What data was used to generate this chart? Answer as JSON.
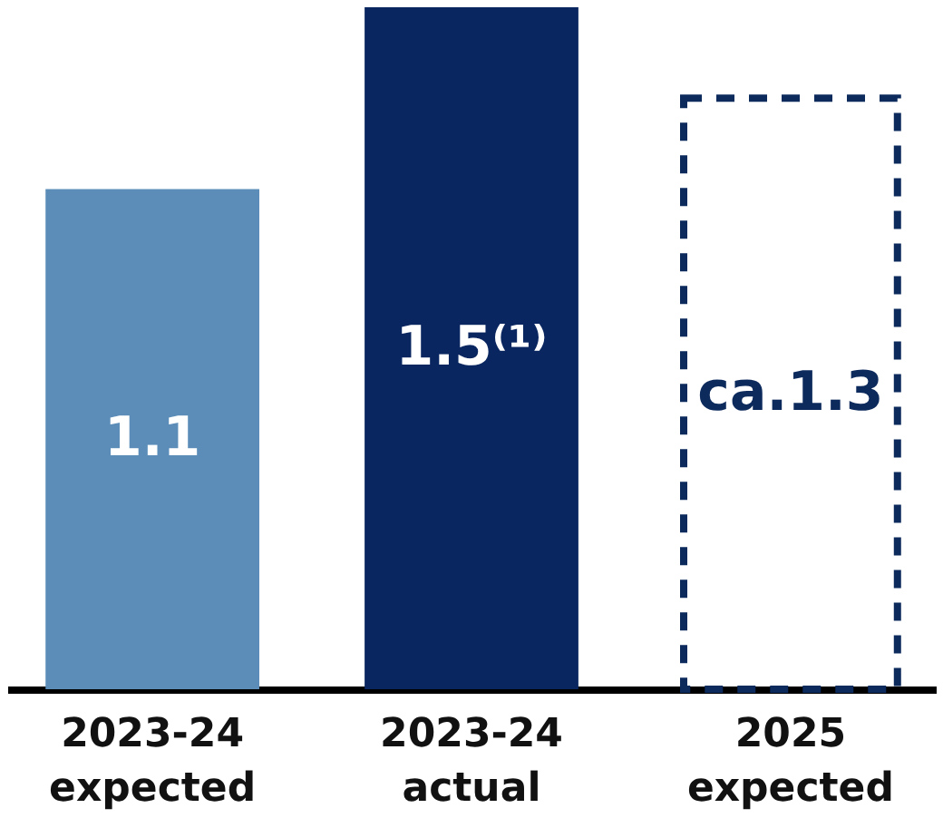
{
  "chart_data": {
    "type": "bar",
    "categories": [
      "2023-24 expected",
      "2023-24 actual",
      "2025 expected"
    ],
    "series": [
      {
        "color": "#5b8db8",
        "values": [
          1.1,
          null,
          null
        ],
        "value_labels": [
          "1.1",
          null,
          null
        ]
      },
      {
        "color": "#0a2660",
        "values": [
          null,
          1.5,
          null
        ],
        "value_labels": [
          null,
          "1.5⁽¹⁾",
          null
        ]
      },
      {
        "color": "#0d2a5c",
        "values": [
          null,
          null,
          1.3
        ],
        "value_labels": [
          null,
          null,
          "ca.1.3"
        ],
        "line_style": "dashed"
      }
    ],
    "grid": false
  }
}
